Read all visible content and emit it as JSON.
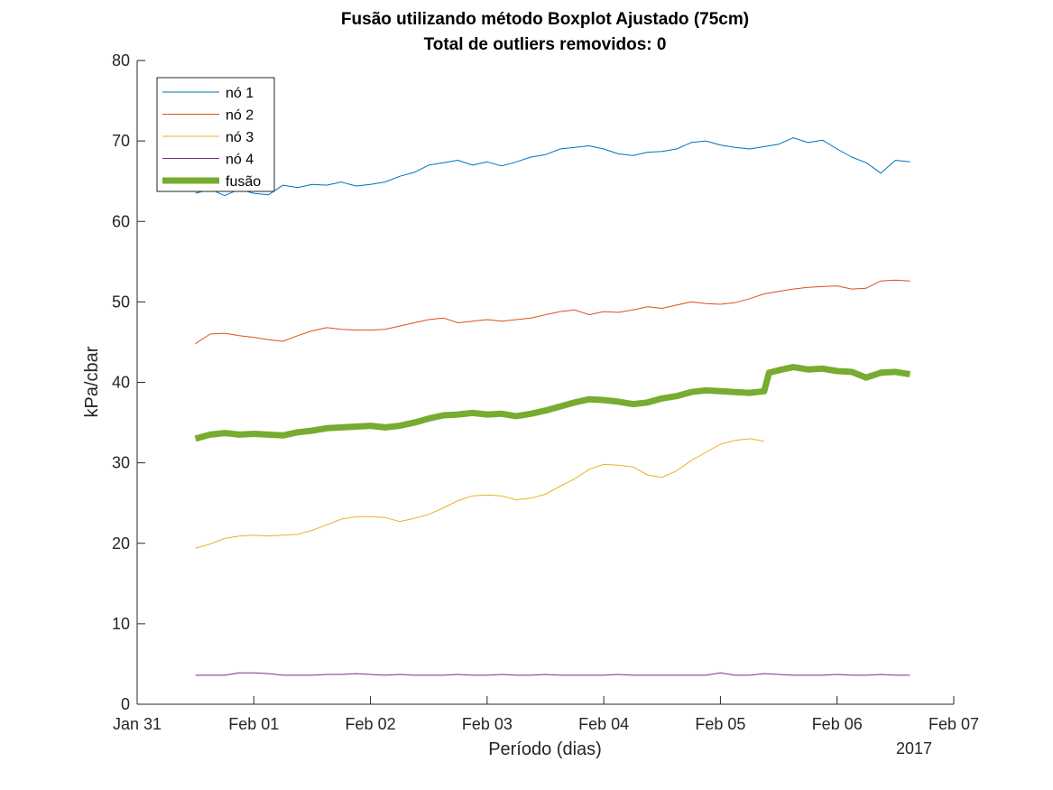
{
  "chart_data": {
    "type": "line",
    "title_line1": "Fusão utilizando método Boxplot Ajustado (75cm)",
    "title_line2": "Total de outliers removidos: 0",
    "xlabel": "Período (dias)",
    "ylabel": "kPa/cbar",
    "year_label": "2017",
    "xlim": [
      "2017-01-31",
      "2017-02-07"
    ],
    "ylim": [
      0,
      80
    ],
    "x_ticks": [
      "Jan 31",
      "Feb 01",
      "Feb 02",
      "Feb 03",
      "Feb 04",
      "Feb 05",
      "Feb 06",
      "Feb 07"
    ],
    "y_ticks": [
      0,
      10,
      20,
      30,
      40,
      50,
      60,
      70,
      80
    ],
    "grid": false,
    "legend_position": "top-left",
    "series": [
      {
        "name": "nó 1",
        "color": "#0072BD",
        "x": [
          "2017-01-31 12:00",
          "2017-01-31 15:00",
          "2017-01-31 18:00",
          "2017-01-31 21:00",
          "2017-02-01 00:00",
          "2017-02-01 03:00",
          "2017-02-01 06:00",
          "2017-02-01 09:00",
          "2017-02-01 12:00",
          "2017-02-01 15:00",
          "2017-02-01 18:00",
          "2017-02-01 21:00",
          "2017-02-02 00:00",
          "2017-02-02 03:00",
          "2017-02-02 06:00",
          "2017-02-02 09:00",
          "2017-02-02 12:00",
          "2017-02-02 15:00",
          "2017-02-02 18:00",
          "2017-02-02 21:00",
          "2017-02-03 00:00",
          "2017-02-03 03:00",
          "2017-02-03 06:00",
          "2017-02-03 09:00",
          "2017-02-03 12:00",
          "2017-02-03 15:00",
          "2017-02-03 18:00",
          "2017-02-03 21:00",
          "2017-02-04 00:00",
          "2017-02-04 03:00",
          "2017-02-04 06:00",
          "2017-02-04 09:00",
          "2017-02-04 12:00",
          "2017-02-04 15:00",
          "2017-02-04 18:00",
          "2017-02-04 21:00",
          "2017-02-05 00:00",
          "2017-02-05 03:00",
          "2017-02-05 06:00",
          "2017-02-05 09:00",
          "2017-02-05 12:00",
          "2017-02-05 15:00",
          "2017-02-05 18:00",
          "2017-02-05 21:00",
          "2017-02-06 00:00",
          "2017-02-06 03:00",
          "2017-02-06 06:00",
          "2017-02-06 09:00",
          "2017-02-06 12:00",
          "2017-02-06 15:00"
        ],
        "values": [
          63.5,
          64.0,
          63.2,
          64.0,
          63.5,
          63.3,
          64.5,
          64.2,
          64.6,
          64.5,
          64.9,
          64.4,
          64.6,
          64.9,
          65.6,
          66.1,
          67.0,
          67.3,
          67.6,
          67.0,
          67.4,
          66.9,
          67.4,
          68.0,
          68.3,
          69.0,
          69.2,
          69.4,
          69.0,
          68.4,
          68.2,
          68.6,
          68.7,
          69.0,
          69.8,
          70.0,
          69.5,
          69.2,
          69.0,
          69.3,
          69.6,
          70.4,
          69.8,
          70.1,
          69.0,
          68.0,
          67.3,
          66.0,
          67.6,
          67.4
        ],
        "width": 1
      },
      {
        "name": "nó 2",
        "color": "#D95319",
        "x": [
          "2017-01-31 12:00",
          "2017-01-31 15:00",
          "2017-01-31 18:00",
          "2017-01-31 21:00",
          "2017-02-01 00:00",
          "2017-02-01 03:00",
          "2017-02-01 06:00",
          "2017-02-01 09:00",
          "2017-02-01 12:00",
          "2017-02-01 15:00",
          "2017-02-01 18:00",
          "2017-02-01 21:00",
          "2017-02-02 00:00",
          "2017-02-02 03:00",
          "2017-02-02 06:00",
          "2017-02-02 09:00",
          "2017-02-02 12:00",
          "2017-02-02 15:00",
          "2017-02-02 18:00",
          "2017-02-02 21:00",
          "2017-02-03 00:00",
          "2017-02-03 03:00",
          "2017-02-03 06:00",
          "2017-02-03 09:00",
          "2017-02-03 12:00",
          "2017-02-03 15:00",
          "2017-02-03 18:00",
          "2017-02-03 21:00",
          "2017-02-04 00:00",
          "2017-02-04 03:00",
          "2017-02-04 06:00",
          "2017-02-04 09:00",
          "2017-02-04 12:00",
          "2017-02-04 15:00",
          "2017-02-04 18:00",
          "2017-02-04 21:00",
          "2017-02-05 00:00",
          "2017-02-05 03:00",
          "2017-02-05 06:00",
          "2017-02-05 09:00",
          "2017-02-05 12:00",
          "2017-02-05 15:00",
          "2017-02-05 18:00",
          "2017-02-05 21:00",
          "2017-02-06 00:00",
          "2017-02-06 03:00",
          "2017-02-06 06:00",
          "2017-02-06 09:00",
          "2017-02-06 12:00",
          "2017-02-06 15:00"
        ],
        "values": [
          44.8,
          46.0,
          46.1,
          45.8,
          45.6,
          45.3,
          45.1,
          45.8,
          46.4,
          46.8,
          46.6,
          46.5,
          46.5,
          46.6,
          47.0,
          47.4,
          47.8,
          48.0,
          47.4,
          47.6,
          47.8,
          47.6,
          47.8,
          48.0,
          48.4,
          48.8,
          49.0,
          48.4,
          48.8,
          48.7,
          49.0,
          49.4,
          49.2,
          49.6,
          50.0,
          49.8,
          49.7,
          49.9,
          50.4,
          51.0,
          51.3,
          51.6,
          51.8,
          51.9,
          52.0,
          51.6,
          51.7,
          52.6,
          52.7,
          52.6
        ],
        "width": 1
      },
      {
        "name": "nó 3",
        "color": "#EDB120",
        "x": [
          "2017-01-31 12:00",
          "2017-01-31 15:00",
          "2017-01-31 18:00",
          "2017-01-31 21:00",
          "2017-02-01 00:00",
          "2017-02-01 03:00",
          "2017-02-01 06:00",
          "2017-02-01 09:00",
          "2017-02-01 12:00",
          "2017-02-01 15:00",
          "2017-02-01 18:00",
          "2017-02-01 21:00",
          "2017-02-02 00:00",
          "2017-02-02 03:00",
          "2017-02-02 06:00",
          "2017-02-02 09:00",
          "2017-02-02 12:00",
          "2017-02-02 15:00",
          "2017-02-02 18:00",
          "2017-02-02 21:00",
          "2017-02-03 00:00",
          "2017-02-03 03:00",
          "2017-02-03 06:00",
          "2017-02-03 09:00",
          "2017-02-03 12:00",
          "2017-02-03 15:00",
          "2017-02-03 18:00",
          "2017-02-03 21:00",
          "2017-02-04 00:00",
          "2017-02-04 03:00",
          "2017-02-04 06:00",
          "2017-02-04 09:00",
          "2017-02-04 12:00",
          "2017-02-04 15:00",
          "2017-02-04 18:00",
          "2017-02-04 21:00",
          "2017-02-05 00:00",
          "2017-02-05 03:00",
          "2017-02-05 06:00",
          "2017-02-05 09:00"
        ],
        "values": [
          19.4,
          19.9,
          20.6,
          20.9,
          21.0,
          20.9,
          21.0,
          21.1,
          21.6,
          22.3,
          23.0,
          23.3,
          23.3,
          23.2,
          22.7,
          23.1,
          23.6,
          24.4,
          25.3,
          25.9,
          26.0,
          25.9,
          25.4,
          25.6,
          26.1,
          27.1,
          28.0,
          29.2,
          29.8,
          29.7,
          29.5,
          28.5,
          28.2,
          29.0,
          30.3,
          31.3,
          32.3,
          32.8,
          33.0,
          32.7
        ],
        "width": 1
      },
      {
        "name": "nó 4",
        "color": "#7E2F8E",
        "x": [
          "2017-01-31 12:00",
          "2017-01-31 15:00",
          "2017-01-31 18:00",
          "2017-01-31 21:00",
          "2017-02-01 00:00",
          "2017-02-01 03:00",
          "2017-02-01 06:00",
          "2017-02-01 09:00",
          "2017-02-01 12:00",
          "2017-02-01 15:00",
          "2017-02-01 18:00",
          "2017-02-01 21:00",
          "2017-02-02 00:00",
          "2017-02-02 03:00",
          "2017-02-02 06:00",
          "2017-02-02 09:00",
          "2017-02-02 12:00",
          "2017-02-02 15:00",
          "2017-02-02 18:00",
          "2017-02-02 21:00",
          "2017-02-03 00:00",
          "2017-02-03 03:00",
          "2017-02-03 06:00",
          "2017-02-03 09:00",
          "2017-02-03 12:00",
          "2017-02-03 15:00",
          "2017-02-03 18:00",
          "2017-02-03 21:00",
          "2017-02-04 00:00",
          "2017-02-04 03:00",
          "2017-02-04 06:00",
          "2017-02-04 09:00",
          "2017-02-04 12:00",
          "2017-02-04 15:00",
          "2017-02-04 18:00",
          "2017-02-04 21:00",
          "2017-02-05 00:00",
          "2017-02-05 03:00",
          "2017-02-05 06:00",
          "2017-02-05 09:00",
          "2017-02-05 12:00",
          "2017-02-05 15:00",
          "2017-02-05 18:00",
          "2017-02-05 21:00",
          "2017-02-06 00:00",
          "2017-02-06 03:00",
          "2017-02-06 06:00",
          "2017-02-06 09:00",
          "2017-02-06 12:00",
          "2017-02-06 15:00"
        ],
        "values": [
          3.6,
          3.6,
          3.6,
          3.9,
          3.9,
          3.8,
          3.6,
          3.6,
          3.6,
          3.7,
          3.7,
          3.8,
          3.7,
          3.6,
          3.7,
          3.6,
          3.6,
          3.6,
          3.7,
          3.6,
          3.6,
          3.7,
          3.6,
          3.6,
          3.7,
          3.6,
          3.6,
          3.6,
          3.6,
          3.7,
          3.6,
          3.6,
          3.6,
          3.6,
          3.6,
          3.6,
          3.9,
          3.6,
          3.6,
          3.8,
          3.7,
          3.6,
          3.6,
          3.6,
          3.7,
          3.6,
          3.6,
          3.7,
          3.6,
          3.6
        ],
        "width": 1
      },
      {
        "name": "fusão",
        "color": "#77AC30",
        "x": [
          "2017-01-31 12:00",
          "2017-01-31 15:00",
          "2017-01-31 18:00",
          "2017-01-31 21:00",
          "2017-02-01 00:00",
          "2017-02-01 03:00",
          "2017-02-01 06:00",
          "2017-02-01 09:00",
          "2017-02-01 12:00",
          "2017-02-01 15:00",
          "2017-02-01 18:00",
          "2017-02-01 21:00",
          "2017-02-02 00:00",
          "2017-02-02 03:00",
          "2017-02-02 06:00",
          "2017-02-02 09:00",
          "2017-02-02 12:00",
          "2017-02-02 15:00",
          "2017-02-02 18:00",
          "2017-02-02 21:00",
          "2017-02-03 00:00",
          "2017-02-03 03:00",
          "2017-02-03 06:00",
          "2017-02-03 09:00",
          "2017-02-03 12:00",
          "2017-02-03 15:00",
          "2017-02-03 18:00",
          "2017-02-03 21:00",
          "2017-02-04 00:00",
          "2017-02-04 03:00",
          "2017-02-04 06:00",
          "2017-02-04 09:00",
          "2017-02-04 12:00",
          "2017-02-04 15:00",
          "2017-02-04 18:00",
          "2017-02-04 21:00",
          "2017-02-05 00:00",
          "2017-02-05 03:00",
          "2017-02-05 06:00",
          "2017-02-05 09:00",
          "2017-02-05 10:00",
          "2017-02-05 12:00",
          "2017-02-05 15:00",
          "2017-02-05 18:00",
          "2017-02-05 21:00",
          "2017-02-06 00:00",
          "2017-02-06 03:00",
          "2017-02-06 06:00",
          "2017-02-06 09:00",
          "2017-02-06 12:00",
          "2017-02-06 15:00"
        ],
        "values": [
          33.0,
          33.5,
          33.7,
          33.5,
          33.6,
          33.5,
          33.4,
          33.8,
          34.0,
          34.3,
          34.4,
          34.5,
          34.6,
          34.4,
          34.6,
          35.0,
          35.5,
          35.9,
          36.0,
          36.2,
          36.0,
          36.1,
          35.8,
          36.1,
          36.5,
          37.0,
          37.5,
          37.9,
          37.8,
          37.6,
          37.3,
          37.5,
          38.0,
          38.3,
          38.8,
          39.0,
          38.9,
          38.8,
          38.7,
          38.9,
          41.2,
          41.5,
          41.9,
          41.6,
          41.7,
          41.4,
          41.3,
          40.6,
          41.2,
          41.3,
          41.0
        ],
        "width": 7
      }
    ]
  }
}
